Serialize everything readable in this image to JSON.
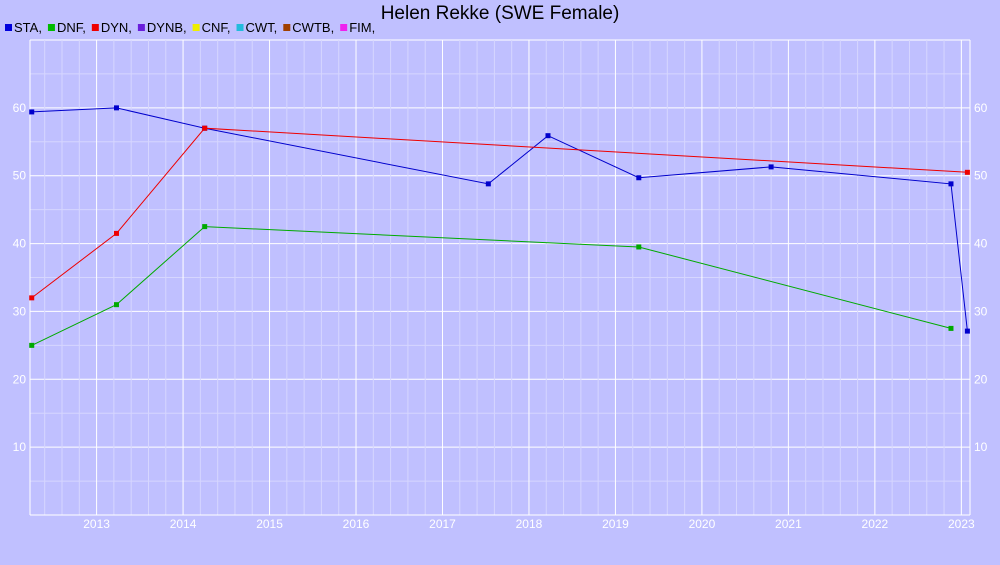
{
  "chart_data": {
    "type": "line",
    "title": "Helen Rekke (SWE Female)",
    "xlim": [
      2012.23,
      2023.1
    ],
    "ylim": [
      0,
      70
    ],
    "x_ticks": [
      2013,
      2014,
      2015,
      2016,
      2017,
      2018,
      2019,
      2020,
      2021,
      2022,
      2023
    ],
    "y_ticks": [
      10,
      20,
      30,
      40,
      50,
      60
    ],
    "grid": true,
    "legend_position": "top-left",
    "background": "#c0c0ff",
    "legend": [
      {
        "label": "STA,",
        "color": "#0000dd"
      },
      {
        "label": "DNF,",
        "color": "#00bb00"
      },
      {
        "label": "DYN,",
        "color": "#ee0000"
      },
      {
        "label": "DYNB,",
        "color": "#6a1edc"
      },
      {
        "label": "CNF,",
        "color": "#eeee00"
      },
      {
        "label": "CWT,",
        "color": "#22bbdd"
      },
      {
        "label": "CWTB,",
        "color": "#a04000"
      },
      {
        "label": "FIM,",
        "color": "#ee22ee"
      }
    ],
    "series": [
      {
        "name": "STA",
        "color": "#0000cc",
        "x": [
          2012.25,
          2013.23,
          2014.25,
          2017.53,
          2018.22,
          2019.27,
          2020.8,
          2022.88,
          2023.07
        ],
        "y": [
          59.4,
          60.0,
          57.0,
          48.8,
          55.9,
          49.7,
          51.3,
          48.8,
          27.1
        ]
      },
      {
        "name": "DNF",
        "color": "#00aa00",
        "x": [
          2012.25,
          2013.23,
          2014.25,
          2019.27,
          2022.88
        ],
        "y": [
          25.0,
          31.0,
          42.5,
          39.5,
          27.5
        ]
      },
      {
        "name": "DYN",
        "color": "#ee0000",
        "x": [
          2012.25,
          2013.23,
          2014.25,
          2023.07
        ],
        "y": [
          32.0,
          41.5,
          57.0,
          50.5
        ]
      }
    ]
  }
}
